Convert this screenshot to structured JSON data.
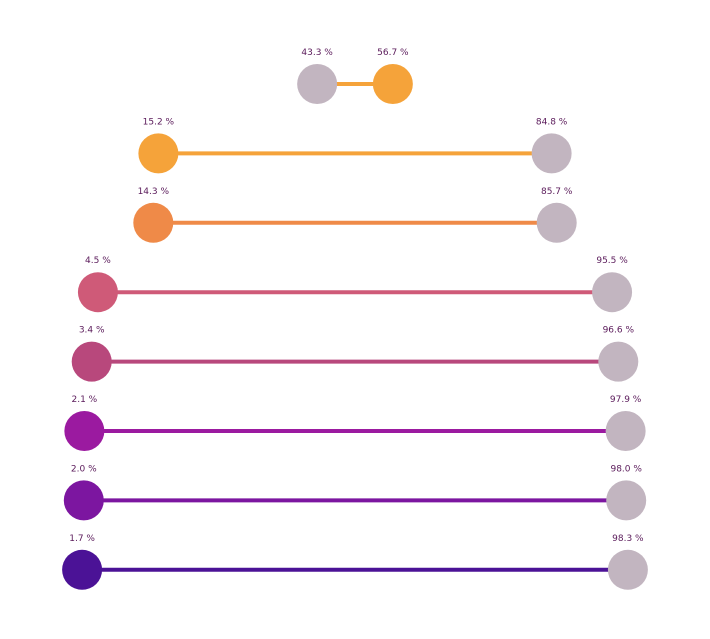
{
  "chart_data": {
    "type": "dumbbell",
    "scale": [
      0,
      100
    ],
    "legend": "none",
    "grid": false,
    "label_suffix": " %",
    "neutral_color": "#c2b5c0",
    "rows": [
      {
        "left": 43.3,
        "right": 56.7,
        "highlight": "right",
        "color": "#f5a33a"
      },
      {
        "left": 15.2,
        "right": 84.8,
        "highlight": "left",
        "color": "#f5a33a"
      },
      {
        "left": 14.3,
        "right": 85.7,
        "highlight": "left",
        "color": "#ef8a48"
      },
      {
        "left": 4.5,
        "right": 95.5,
        "highlight": "left",
        "color": "#cf5a78"
      },
      {
        "left": 3.4,
        "right": 96.6,
        "highlight": "left",
        "color": "#b8487c"
      },
      {
        "left": 2.1,
        "right": 97.9,
        "highlight": "left",
        "color": "#9b1aa0"
      },
      {
        "left": 2.0,
        "right": 98.0,
        "highlight": "left",
        "color": "#7c16a0"
      },
      {
        "left": 1.7,
        "right": 98.3,
        "highlight": "left",
        "color": "#4b1296"
      }
    ]
  }
}
